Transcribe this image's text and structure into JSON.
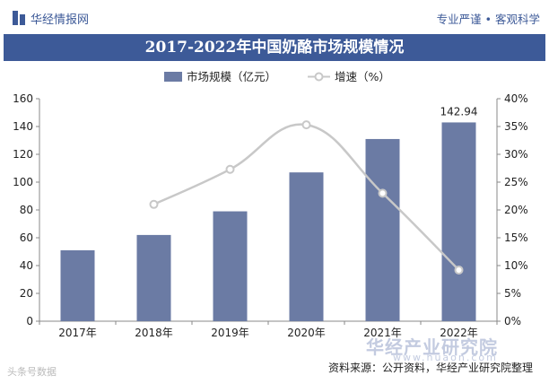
{
  "header": {
    "brand": "华经情报网",
    "slogan": "专业严谨 • 客观科学"
  },
  "title": "2017-2022年中国奶酪市场规模情况",
  "legend": {
    "bar_label": "市场规模（亿元）",
    "line_label": "增速（%）"
  },
  "footer": {
    "source": "资料来源：公开资料，华经产业研究院整理",
    "left_note": "头条号数据",
    "watermark_brand": "华经产业研究院",
    "watermark_site": "www.huaon.com"
  },
  "colors": {
    "bar": "#6b7ba4",
    "line": "#c8c8c8",
    "title_bg": "#3d5a98"
  },
  "chart_data": {
    "type": "bar",
    "title": "2017-2022年中国奶酪市场规模情况",
    "categories": [
      "2017年",
      "2018年",
      "2019年",
      "2020年",
      "2021年",
      "2022年"
    ],
    "series": [
      {
        "name": "市场规模（亿元）",
        "type": "bar",
        "axis": "left",
        "values": [
          51,
          62,
          79,
          107,
          131,
          142.94
        ]
      },
      {
        "name": "增速（%）",
        "type": "line",
        "axis": "right",
        "values": [
          null,
          21.0,
          27.3,
          35.3,
          23.0,
          9.2
        ]
      }
    ],
    "data_labels": [
      {
        "category": "2022年",
        "text": "142.94"
      }
    ],
    "y_left": {
      "lim": [
        0,
        160
      ],
      "ticks": [
        "0",
        "20",
        "40",
        "60",
        "80",
        "100",
        "120",
        "140",
        "160"
      ]
    },
    "y_right": {
      "lim": [
        0,
        40
      ],
      "ticks": [
        "0%",
        "5%",
        "10%",
        "15%",
        "20%",
        "25%",
        "30%",
        "35%",
        "40%"
      ]
    },
    "grid": false,
    "legend_position": "top-center"
  }
}
